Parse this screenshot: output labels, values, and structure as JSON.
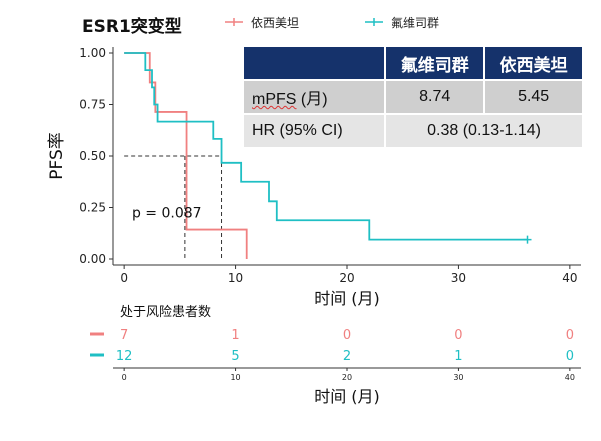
{
  "title": "ESR1突变型",
  "legend": [
    {
      "label": "依西美坦",
      "color": "#f08080"
    },
    {
      "label": "氟维司群",
      "color": "#1fbfc4"
    }
  ],
  "table": {
    "headers": [
      "",
      "氟维司群",
      "依西美坦"
    ],
    "row1": {
      "label_main": "mPFS",
      "label_suffix": " (月)",
      "fulv": "8.74",
      "exem": "5.45"
    },
    "row2": {
      "label": "HR (95% CI)",
      "value": "0.38 (0.13-1.14)"
    }
  },
  "risk_table": {
    "title": "处于风险患者数",
    "rows": [
      {
        "name": "依西美坦",
        "color": "#f08080",
        "counts": [
          "7",
          "1",
          "0",
          "0",
          "0"
        ]
      },
      {
        "name": "氟维司群",
        "color": "#1fbfc4",
        "counts": [
          "12",
          "5",
          "2",
          "1",
          "0"
        ]
      }
    ],
    "x_ticks": [
      "0",
      "10",
      "20",
      "30",
      "40"
    ],
    "xlabel": "时间 (月)"
  },
  "chart_data": {
    "type": "line",
    "subtype": "kaplan-meier step",
    "xlabel": "时间 (月)",
    "ylabel": "PFS率",
    "xlim": [
      -1,
      41
    ],
    "ylim": [
      0,
      1.0
    ],
    "x_ticks": [
      0,
      10,
      20,
      30,
      40
    ],
    "y_ticks": [
      "0.00",
      "0.25",
      "0.50",
      "0.75",
      "1.00"
    ],
    "annotation": "p = 0.087",
    "medians": [
      5.45,
      8.74
    ],
    "series": [
      {
        "name": "依西美坦",
        "color": "#f08080",
        "x": [
          0,
          2,
          2.3,
          2.8,
          5.45,
          5.6,
          11,
          11
        ],
        "y": [
          1.0,
          1.0,
          0.857,
          0.714,
          0.714,
          0.143,
          0.143,
          0.0
        ]
      },
      {
        "name": "氟维司群",
        "color": "#1fbfc4",
        "x": [
          0,
          1.9,
          2.5,
          2.7,
          3.0,
          8.0,
          8.74,
          10.5,
          13.0,
          13.7,
          22.0,
          36.2
        ],
        "y": [
          1.0,
          0.917,
          0.833,
          0.75,
          0.667,
          0.583,
          0.467,
          0.375,
          0.28,
          0.188,
          0.094,
          0.094
        ],
        "censored": [
          36.2
        ]
      }
    ]
  }
}
